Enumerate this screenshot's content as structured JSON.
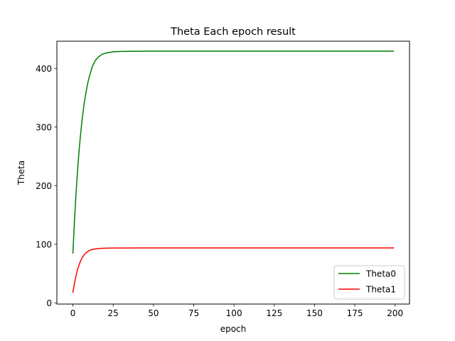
{
  "chart_data": {
    "type": "line",
    "title": "Theta Each epoch result",
    "xlabel": "epoch",
    "ylabel": "Theta",
    "xlim": [
      -9.95,
      208.95
    ],
    "ylim": [
      -2.1,
      446.5
    ],
    "x_ticks": [
      0,
      25,
      50,
      75,
      100,
      125,
      150,
      175,
      200
    ],
    "y_ticks": [
      0,
      100,
      200,
      300,
      400
    ],
    "grid": false,
    "legend_position": "lower right",
    "series": [
      {
        "name": "Theta0",
        "color": "#008000",
        "x": [
          0,
          1,
          2,
          3,
          4,
          5,
          6,
          7,
          8,
          9,
          10,
          12,
          14,
          16,
          18,
          20,
          25,
          30,
          35,
          40,
          50,
          75,
          100,
          125,
          150,
          175,
          199
        ],
        "y": [
          85,
          141,
          189,
          230,
          265,
          294,
          319,
          340,
          357,
          372,
          384,
          403,
          414,
          420,
          424,
          426,
          428.5,
          429,
          429.3,
          429.4,
          429.5,
          429.5,
          429.5,
          429.5,
          429.5,
          429.5,
          429.5
        ]
      },
      {
        "name": "Theta1",
        "color": "#ff0000",
        "x": [
          0,
          1,
          2,
          3,
          4,
          5,
          6,
          7,
          8,
          9,
          10,
          12,
          14,
          16,
          18,
          20,
          25,
          30,
          40,
          50,
          75,
          100,
          125,
          150,
          175,
          199
        ],
        "y": [
          18,
          34,
          47,
          58,
          66,
          73,
          78,
          82,
          85,
          87,
          89,
          91,
          92,
          92.6,
          93,
          93.2,
          93.5,
          93.6,
          93.7,
          93.7,
          93.7,
          93.7,
          93.7,
          93.7,
          93.7,
          93.7
        ]
      }
    ]
  }
}
